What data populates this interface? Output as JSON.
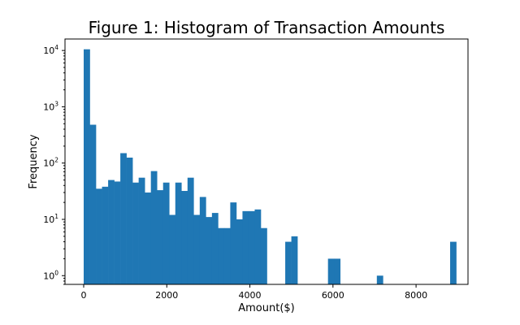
{
  "chart_data": {
    "type": "bar",
    "title": "Figure 1: Histogram of Transaction Amounts",
    "xlabel": "Amount($)",
    "ylabel": "Frequency",
    "yscale": "log",
    "ylim": [
      0.7,
      16000
    ],
    "xlim": [
      -450,
      9250
    ],
    "grid": false,
    "color": "#1f77b4",
    "bin_width": 147,
    "x_ticks": [
      {
        "value": 0,
        "label": "0"
      },
      {
        "value": 2000,
        "label": "2000"
      },
      {
        "value": 4000,
        "label": "4000"
      },
      {
        "value": 6000,
        "label": "6000"
      },
      {
        "value": 8000,
        "label": "8000"
      }
    ],
    "y_ticks": [
      {
        "value": 1,
        "base": "10",
        "exp": "0"
      },
      {
        "value": 10,
        "base": "10",
        "exp": "1"
      },
      {
        "value": 100,
        "base": "10",
        "exp": "2"
      },
      {
        "value": 1000,
        "base": "10",
        "exp": "3"
      },
      {
        "value": 10000,
        "base": "10",
        "exp": "4"
      }
    ],
    "bins": [
      {
        "x": 0,
        "count": 10500
      },
      {
        "x": 147,
        "count": 480
      },
      {
        "x": 294,
        "count": 35
      },
      {
        "x": 441,
        "count": 38
      },
      {
        "x": 588,
        "count": 50
      },
      {
        "x": 735,
        "count": 47
      },
      {
        "x": 882,
        "count": 150
      },
      {
        "x": 1029,
        "count": 125
      },
      {
        "x": 1176,
        "count": 45
      },
      {
        "x": 1323,
        "count": 55
      },
      {
        "x": 1470,
        "count": 30
      },
      {
        "x": 1617,
        "count": 72
      },
      {
        "x": 1764,
        "count": 33
      },
      {
        "x": 1911,
        "count": 45
      },
      {
        "x": 2058,
        "count": 12
      },
      {
        "x": 2205,
        "count": 45
      },
      {
        "x": 2352,
        "count": 32
      },
      {
        "x": 2499,
        "count": 55
      },
      {
        "x": 2646,
        "count": 12
      },
      {
        "x": 2793,
        "count": 25
      },
      {
        "x": 2940,
        "count": 11
      },
      {
        "x": 3087,
        "count": 13
      },
      {
        "x": 3234,
        "count": 7
      },
      {
        "x": 3381,
        "count": 7
      },
      {
        "x": 3528,
        "count": 20
      },
      {
        "x": 3675,
        "count": 10
      },
      {
        "x": 3822,
        "count": 14
      },
      {
        "x": 3969,
        "count": 14
      },
      {
        "x": 4116,
        "count": 15
      },
      {
        "x": 4263,
        "count": 7
      },
      {
        "x": 4851,
        "count": 4
      },
      {
        "x": 4998,
        "count": 5
      },
      {
        "x": 5880,
        "count": 2
      },
      {
        "x": 6027,
        "count": 2
      },
      {
        "x": 7056,
        "count": 1
      },
      {
        "x": 8820,
        "count": 4
      }
    ]
  }
}
